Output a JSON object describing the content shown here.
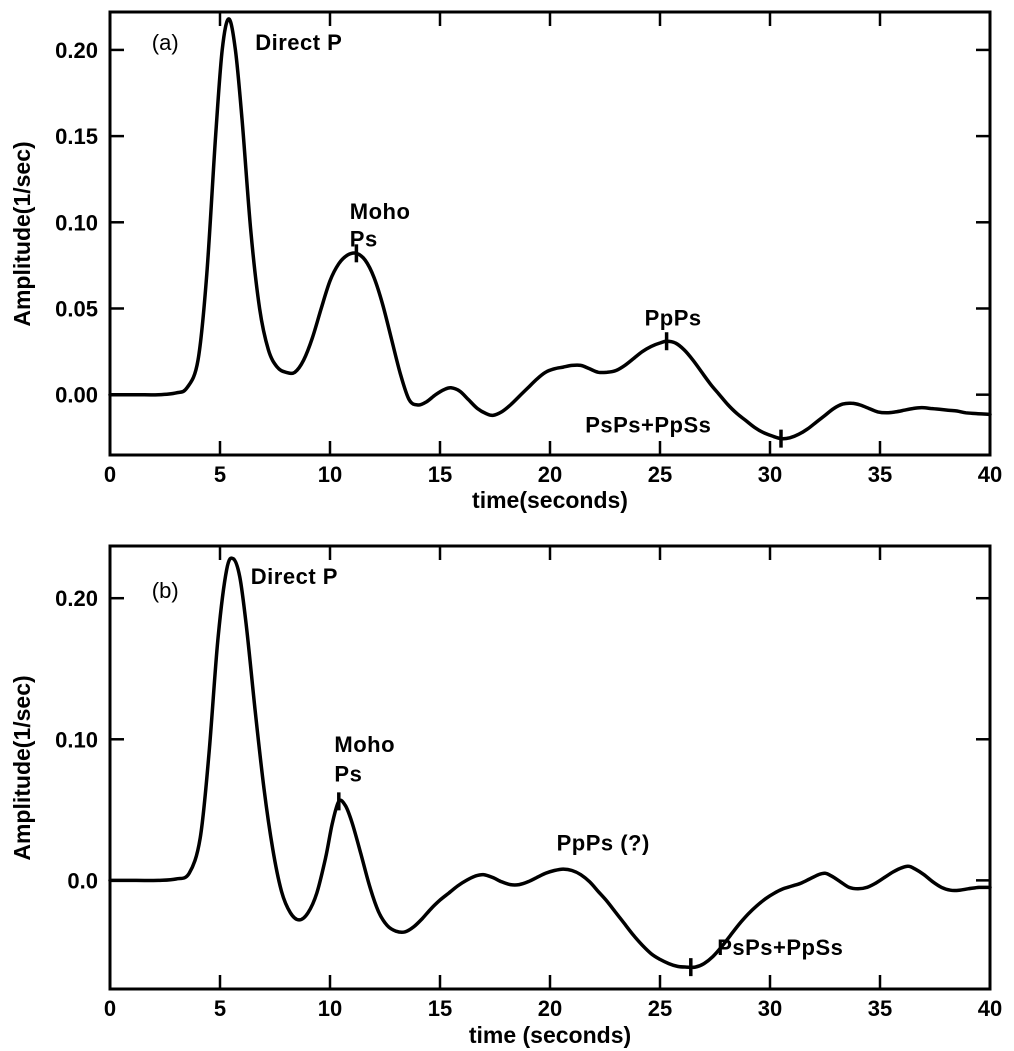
{
  "page": {
    "background": "#ffffff",
    "ink": "#000000"
  },
  "chart_data": [
    {
      "type": "line",
      "panel_label": {
        "text": "(a)",
        "x": 1.9,
        "y": 0.2
      },
      "xlabel": "time(seconds)",
      "ylabel": "Amplitude(1/sec)",
      "xlim": [
        0,
        40
      ],
      "ylim": [
        -0.035,
        0.222
      ],
      "xticks": [
        0,
        5,
        10,
        15,
        20,
        25,
        30,
        35,
        40
      ],
      "xtick_labels": [
        "0",
        "5",
        "10",
        "15",
        "20",
        "25",
        "30",
        "35",
        "40"
      ],
      "yticks": [
        0,
        0.05,
        0.1,
        0.15,
        0.2
      ],
      "ytick_labels": [
        "0.00",
        "0.05",
        "0.10",
        "0.15",
        "0.20"
      ],
      "grid": false,
      "line_color": "#000000",
      "series": [
        {
          "name": "receiver-function-a",
          "points": [
            [
              0,
              0
            ],
            [
              1.2,
              0
            ],
            [
              2.2,
              0
            ],
            [
              3,
              0.001
            ],
            [
              3.5,
              0.004
            ],
            [
              4,
              0.02
            ],
            [
              4.4,
              0.07
            ],
            [
              4.8,
              0.15
            ],
            [
              5.1,
              0.2
            ],
            [
              5.4,
              0.218
            ],
            [
              5.7,
              0.2
            ],
            [
              6,
              0.16
            ],
            [
              6.4,
              0.095
            ],
            [
              6.8,
              0.05
            ],
            [
              7.2,
              0.026
            ],
            [
              7.6,
              0.016
            ],
            [
              8,
              0.013
            ],
            [
              8.4,
              0.013
            ],
            [
              8.8,
              0.02
            ],
            [
              9.2,
              0.033
            ],
            [
              9.6,
              0.05
            ],
            [
              10,
              0.066
            ],
            [
              10.4,
              0.076
            ],
            [
              10.8,
              0.081
            ],
            [
              11.2,
              0.082
            ],
            [
              11.6,
              0.078
            ],
            [
              12,
              0.068
            ],
            [
              12.4,
              0.052
            ],
            [
              12.8,
              0.032
            ],
            [
              13.2,
              0.012
            ],
            [
              13.6,
              -0.003
            ],
            [
              14,
              -0.006
            ],
            [
              14.4,
              -0.004
            ],
            [
              14.8,
              0
            ],
            [
              15.2,
              0.003
            ],
            [
              15.5,
              0.004
            ],
            [
              15.9,
              0.002
            ],
            [
              16.3,
              -0.003
            ],
            [
              16.7,
              -0.008
            ],
            [
              17.1,
              -0.011
            ],
            [
              17.4,
              -0.012
            ],
            [
              17.8,
              -0.01
            ],
            [
              18.2,
              -0.006
            ],
            [
              18.6,
              -0.001
            ],
            [
              19,
              0.004
            ],
            [
              19.4,
              0.009
            ],
            [
              19.8,
              0.013
            ],
            [
              20.2,
              0.015
            ],
            [
              20.6,
              0.016
            ],
            [
              21,
              0.017
            ],
            [
              21.4,
              0.017
            ],
            [
              21.8,
              0.015
            ],
            [
              22.2,
              0.013
            ],
            [
              22.6,
              0.013
            ],
            [
              23,
              0.014
            ],
            [
              23.4,
              0.017
            ],
            [
              23.8,
              0.021
            ],
            [
              24.2,
              0.025
            ],
            [
              24.6,
              0.028
            ],
            [
              25,
              0.03
            ],
            [
              25.3,
              0.031
            ],
            [
              25.7,
              0.03
            ],
            [
              26.1,
              0.026
            ],
            [
              26.5,
              0.02
            ],
            [
              26.9,
              0.013
            ],
            [
              27.3,
              0.006
            ],
            [
              27.7,
              0
            ],
            [
              28.1,
              -0.006
            ],
            [
              28.5,
              -0.011
            ],
            [
              28.9,
              -0.015
            ],
            [
              29.3,
              -0.019
            ],
            [
              29.7,
              -0.022
            ],
            [
              30.1,
              -0.024
            ],
            [
              30.5,
              -0.0255
            ],
            [
              30.9,
              -0.025
            ],
            [
              31.3,
              -0.023
            ],
            [
              31.7,
              -0.02
            ],
            [
              32.1,
              -0.016
            ],
            [
              32.5,
              -0.012
            ],
            [
              32.9,
              -0.008
            ],
            [
              33.3,
              -0.0055
            ],
            [
              33.7,
              -0.005
            ],
            [
              34.1,
              -0.006
            ],
            [
              34.5,
              -0.008
            ],
            [
              34.9,
              -0.01
            ],
            [
              35.3,
              -0.0105
            ],
            [
              35.7,
              -0.01
            ],
            [
              36.1,
              -0.009
            ],
            [
              36.5,
              -0.008
            ],
            [
              36.9,
              -0.0075
            ],
            [
              37.3,
              -0.008
            ],
            [
              37.7,
              -0.0085
            ],
            [
              38.1,
              -0.009
            ],
            [
              38.5,
              -0.0095
            ],
            [
              38.9,
              -0.0105
            ],
            [
              39.4,
              -0.011
            ],
            [
              40,
              -0.0115
            ]
          ]
        }
      ],
      "annotations": [
        {
          "id": "direct-p",
          "text": "Direct P",
          "x": 6.6,
          "y": 0.2,
          "anchor": "start"
        },
        {
          "id": "moho",
          "text": "Moho",
          "x": 10.9,
          "y": 0.102,
          "anchor": "start"
        },
        {
          "id": "ps",
          "text": "Ps",
          "x": 10.9,
          "y": 0.086,
          "anchor": "start"
        },
        {
          "id": "ppps",
          "text": "PpPs",
          "x": 24.3,
          "y": 0.04,
          "anchor": "start"
        },
        {
          "id": "psps-ppss",
          "text": "PsPs+PpSs",
          "x": 21.6,
          "y": -0.022,
          "anchor": "start"
        }
      ],
      "peak_markers": [
        {
          "x": 11.2,
          "y": 0.082
        },
        {
          "x": 25.3,
          "y": 0.031
        },
        {
          "x": 30.5,
          "y": -0.0255
        }
      ]
    },
    {
      "type": "line",
      "panel_label": {
        "text": "(b)",
        "x": 1.9,
        "y": 0.2
      },
      "xlabel": "time (seconds)",
      "ylabel": "Amplitude(1/sec)",
      "xlim": [
        0,
        40
      ],
      "ylim": [
        -0.077,
        0.237
      ],
      "xticks": [
        0,
        5,
        10,
        15,
        20,
        25,
        30,
        35,
        40
      ],
      "xtick_labels": [
        "0",
        "5",
        "10",
        "15",
        "20",
        "25",
        "30",
        "35",
        "40"
      ],
      "yticks": [
        0,
        0.1,
        0.2
      ],
      "ytick_labels": [
        "0.0",
        "0.10",
        "0.20"
      ],
      "grid": false,
      "line_color": "#000000",
      "series": [
        {
          "name": "receiver-function-b",
          "points": [
            [
              0,
              0
            ],
            [
              1.2,
              0
            ],
            [
              2.2,
              0
            ],
            [
              3,
              0.001
            ],
            [
              3.6,
              0.005
            ],
            [
              4.1,
              0.03
            ],
            [
              4.5,
              0.09
            ],
            [
              4.9,
              0.17
            ],
            [
              5.3,
              0.22
            ],
            [
              5.6,
              0.228
            ],
            [
              5.9,
              0.215
            ],
            [
              6.2,
              0.18
            ],
            [
              6.6,
              0.12
            ],
            [
              7,
              0.065
            ],
            [
              7.4,
              0.022
            ],
            [
              7.8,
              -0.008
            ],
            [
              8.2,
              -0.023
            ],
            [
              8.6,
              -0.028
            ],
            [
              9,
              -0.023
            ],
            [
              9.4,
              -0.009
            ],
            [
              9.8,
              0.016
            ],
            [
              10.1,
              0.04
            ],
            [
              10.4,
              0.056
            ],
            [
              10.7,
              0.053
            ],
            [
              11,
              0.041
            ],
            [
              11.4,
              0.019
            ],
            [
              11.8,
              -0.004
            ],
            [
              12.2,
              -0.022
            ],
            [
              12.6,
              -0.032
            ],
            [
              13,
              -0.036
            ],
            [
              13.4,
              -0.0365
            ],
            [
              13.8,
              -0.033
            ],
            [
              14.2,
              -0.027
            ],
            [
              14.6,
              -0.02
            ],
            [
              15,
              -0.014
            ],
            [
              15.4,
              -0.009
            ],
            [
              15.8,
              -0.004
            ],
            [
              16.2,
              0
            ],
            [
              16.6,
              0.003
            ],
            [
              17,
              0.004
            ],
            [
              17.4,
              0.002
            ],
            [
              17.8,
              -0.001
            ],
            [
              18.2,
              -0.003
            ],
            [
              18.6,
              -0.003
            ],
            [
              19,
              -0.001
            ],
            [
              19.4,
              0.002
            ],
            [
              19.8,
              0.005
            ],
            [
              20.2,
              0.007
            ],
            [
              20.6,
              0.008
            ],
            [
              21,
              0.007
            ],
            [
              21.4,
              0.004
            ],
            [
              21.8,
              -0.001
            ],
            [
              22.2,
              -0.008
            ],
            [
              22.6,
              -0.015
            ],
            [
              23,
              -0.023
            ],
            [
              23.4,
              -0.031
            ],
            [
              23.8,
              -0.039
            ],
            [
              24.2,
              -0.046
            ],
            [
              24.6,
              -0.052
            ],
            [
              25,
              -0.056
            ],
            [
              25.4,
              -0.059
            ],
            [
              25.8,
              -0.061
            ],
            [
              26.2,
              -0.0615
            ],
            [
              26.6,
              -0.0615
            ],
            [
              27,
              -0.059
            ],
            [
              27.4,
              -0.054
            ],
            [
              27.8,
              -0.047
            ],
            [
              28.2,
              -0.039
            ],
            [
              28.6,
              -0.031
            ],
            [
              29,
              -0.024
            ],
            [
              29.4,
              -0.018
            ],
            [
              29.8,
              -0.013
            ],
            [
              30.2,
              -0.009
            ],
            [
              30.6,
              -0.006
            ],
            [
              31,
              -0.004
            ],
            [
              31.4,
              -0.002
            ],
            [
              31.8,
              0.001
            ],
            [
              32.2,
              0.004
            ],
            [
              32.5,
              0.005
            ],
            [
              32.8,
              0.003
            ],
            [
              33.2,
              -0.001
            ],
            [
              33.6,
              -0.005
            ],
            [
              34,
              -0.006
            ],
            [
              34.4,
              -0.005
            ],
            [
              34.8,
              -0.002
            ],
            [
              35.2,
              0.002
            ],
            [
              35.6,
              0.006
            ],
            [
              36,
              0.009
            ],
            [
              36.3,
              0.01
            ],
            [
              36.6,
              0.008
            ],
            [
              37,
              0.004
            ],
            [
              37.4,
              -0.001
            ],
            [
              37.8,
              -0.005
            ],
            [
              38.2,
              -0.007
            ],
            [
              38.6,
              -0.007
            ],
            [
              39,
              -0.006
            ],
            [
              39.5,
              -0.005
            ],
            [
              40,
              -0.005
            ]
          ]
        }
      ],
      "annotations": [
        {
          "id": "direct-p",
          "text": "Direct P",
          "x": 6.4,
          "y": 0.21,
          "anchor": "start"
        },
        {
          "id": "moho",
          "text": "Moho",
          "x": 10.2,
          "y": 0.091,
          "anchor": "start"
        },
        {
          "id": "ps",
          "text": "Ps",
          "x": 10.2,
          "y": 0.07,
          "anchor": "start"
        },
        {
          "id": "ppps",
          "text": "PpPs (?)",
          "x": 20.3,
          "y": 0.021,
          "anchor": "start"
        },
        {
          "id": "psps-ppss",
          "text": "PsPs+PpSs",
          "x": 27.6,
          "y": -0.053,
          "anchor": "start"
        }
      ],
      "peak_markers": [
        {
          "x": 10.4,
          "y": 0.056
        },
        {
          "x": 26.4,
          "y": -0.0615
        }
      ]
    }
  ]
}
